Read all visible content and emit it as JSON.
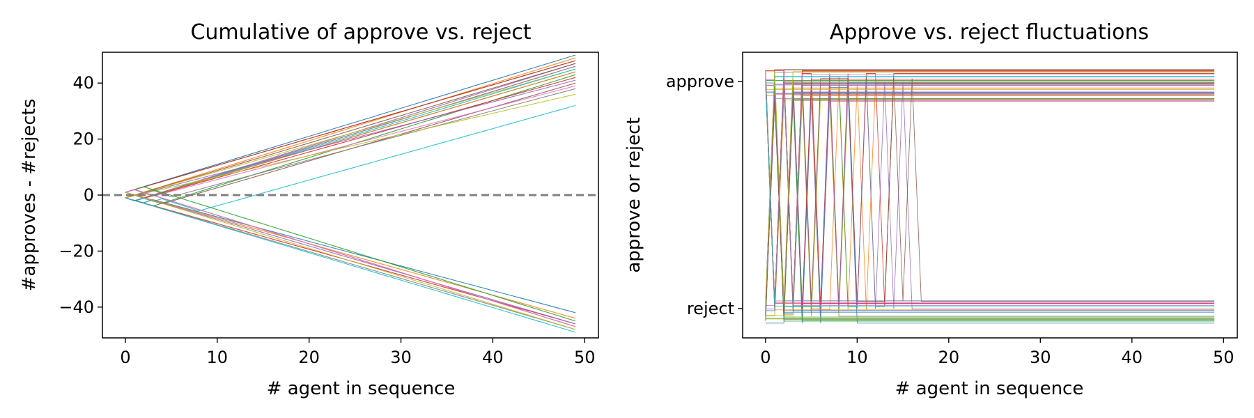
{
  "chart_data": [
    {
      "type": "line",
      "title": "Cumulative of approve vs. reject",
      "xlabel": "# agent in sequence",
      "ylabel": "#approves - #rejects",
      "xlim": [
        -2.5,
        51.5
      ],
      "ylim": [
        -51,
        51
      ],
      "xticks": [
        0,
        10,
        20,
        30,
        40,
        50
      ],
      "yticks": [
        -40,
        -20,
        0,
        20,
        40
      ],
      "x": [
        0,
        49
      ],
      "reference_line": {
        "y": 0,
        "style": "dashed",
        "color": "#808080"
      },
      "palette": [
        "#1f77b4",
        "#ff7f0e",
        "#2ca02c",
        "#d62728",
        "#9467bd",
        "#8c564b",
        "#e377c2",
        "#7f7f7f",
        "#bcbd22",
        "#17becf"
      ],
      "series_note": "many runs, unlabeled",
      "series_summary": [
        {
          "trend": "up",
          "end_values": [
            50,
            49,
            48,
            48,
            47,
            47,
            46,
            46,
            45,
            45,
            44,
            44,
            43,
            42,
            41,
            40,
            39,
            38,
            36,
            32
          ]
        },
        {
          "trend": "down",
          "end_values": [
            -42,
            -44,
            -45,
            -46,
            -46,
            -47,
            -47,
            -48,
            -48,
            -49
          ]
        }
      ],
      "grid": false,
      "legend": false
    },
    {
      "type": "line",
      "title": "Approve vs. reject fluctuations",
      "xlabel": "# agent in sequence",
      "ylabel": "approve or reject",
      "xlim": [
        -2.5,
        51.5
      ],
      "xticks": [
        0,
        10,
        20,
        30,
        40,
        50
      ],
      "ytick_labels": [
        "reject",
        "approve"
      ],
      "states": {
        "reject": 0,
        "approve": 1
      },
      "x": [
        0,
        49
      ],
      "settle_steps": [
        1,
        2,
        3,
        4,
        5,
        6,
        7,
        8,
        9,
        10,
        11,
        13,
        14,
        15,
        17,
        18
      ],
      "grid": false,
      "legend": false
    }
  ]
}
